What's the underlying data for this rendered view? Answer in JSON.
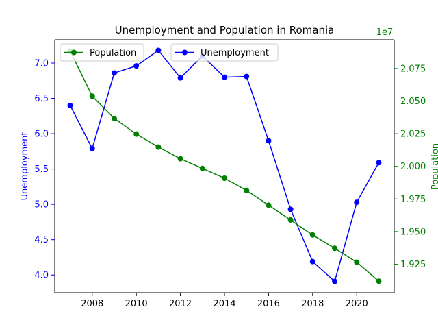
{
  "chart_data": {
    "type": "line",
    "title": "Unemployment and Population in Romania",
    "x": [
      2007,
      2008,
      2009,
      2010,
      2011,
      2012,
      2013,
      2014,
      2015,
      2016,
      2017,
      2018,
      2019,
      2020,
      2021
    ],
    "xticks": [
      2008,
      2010,
      2012,
      2014,
      2016,
      2018,
      2020
    ],
    "xlim": [
      2006.3,
      2021.7
    ],
    "series": [
      {
        "name": "Unemployment",
        "axis": "left",
        "color": "#0000ff",
        "values": [
          6.4,
          5.79,
          6.86,
          6.96,
          7.18,
          6.79,
          7.1,
          6.8,
          6.81,
          5.9,
          4.93,
          4.19,
          3.91,
          5.03,
          5.59
        ]
      },
      {
        "name": "Population",
        "axis": "right",
        "color": "#008000",
        "values": [
          20882982,
          20537875,
          20367487,
          20246798,
          20147528,
          20058035,
          19983693,
          19908979,
          19815481,
          19702332,
          19588715,
          19473970,
          19371648,
          19265250,
          19119880
        ]
      }
    ],
    "left_axis": {
      "label": "Unemployment",
      "color": "#0000ff",
      "ylim": [
        3.75,
        7.33
      ],
      "ticks": [
        4.0,
        4.5,
        5.0,
        5.5,
        6.0,
        6.5,
        7.0
      ],
      "tick_labels": [
        "4.0",
        "4.5",
        "5.0",
        "5.5",
        "6.0",
        "6.5",
        "7.0"
      ]
    },
    "right_axis": {
      "label": "Population",
      "color": "#008000",
      "scale_label": "1e7",
      "ylim": [
        19031725,
        20970000
      ],
      "ticks": [
        19250000,
        19500000,
        19750000,
        20000000,
        20250000,
        20500000,
        20750000
      ],
      "tick_labels": [
        "1.925",
        "1.950",
        "1.975",
        "2.000",
        "2.025",
        "2.050",
        "2.075"
      ]
    },
    "legends": [
      {
        "series": "Population",
        "placement": "upper-left"
      },
      {
        "series": "Unemployment",
        "placement": "upper-center"
      }
    ],
    "grid": false
  }
}
